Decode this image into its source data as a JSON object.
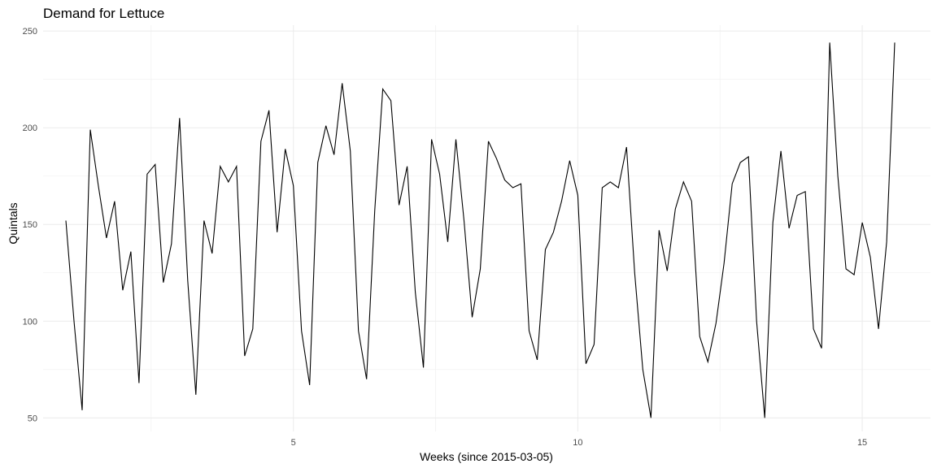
{
  "chart_data": {
    "type": "line",
    "title": "Demand for Lettuce",
    "xlabel": "Weeks (since 2015-03-05)",
    "ylabel": "Quintals",
    "xlim": [
      0.6,
      16.2
    ],
    "ylim": [
      43,
      253
    ],
    "x_major_ticks": [
      5,
      10,
      15
    ],
    "x_minor_ticks": [
      2.5,
      7.5,
      12.5
    ],
    "y_major_ticks": [
      50,
      100,
      150,
      200,
      250
    ],
    "y_minor_ticks": [
      75,
      125,
      175,
      225
    ],
    "grid": true,
    "legend": "none",
    "series": [
      {
        "x": [
          1.0,
          1.143,
          1.286,
          1.429,
          1.571,
          1.714,
          1.857,
          2.0,
          2.143,
          2.286,
          2.429,
          2.571,
          2.714,
          2.857,
          3.0,
          3.143,
          3.286,
          3.429,
          3.571,
          3.714,
          3.857,
          4.0,
          4.143,
          4.286,
          4.429,
          4.571,
          4.714,
          4.857,
          5.0,
          5.143,
          5.286,
          5.429,
          5.571,
          5.714,
          5.857,
          6.0,
          6.143,
          6.286,
          6.429,
          6.571,
          6.714,
          6.857,
          7.0,
          7.143,
          7.286,
          7.429,
          7.571,
          7.714,
          7.857,
          8.0,
          8.143,
          8.286,
          8.429,
          8.571,
          8.714,
          8.857,
          9.0,
          9.143,
          9.286,
          9.429,
          9.571,
          9.714,
          9.857,
          10.0,
          10.143,
          10.286,
          10.429,
          10.571,
          10.714,
          10.857,
          11.0,
          11.143,
          11.286,
          11.429,
          11.571,
          11.714,
          11.857,
          12.0,
          12.143,
          12.286,
          12.429,
          12.571,
          12.714,
          12.857,
          13.0,
          13.143,
          13.286,
          13.429,
          13.571,
          13.714,
          13.857,
          14.0,
          14.143,
          14.286,
          14.429,
          14.571,
          14.714,
          14.857,
          15.0,
          15.143,
          15.286,
          15.429,
          15.571
        ],
        "values": [
          152,
          100,
          54,
          199,
          170,
          143,
          162,
          116,
          136,
          68,
          176,
          181,
          120,
          140,
          205,
          121,
          62,
          152,
          135,
          180,
          172,
          180,
          82,
          96,
          193,
          209,
          146,
          189,
          170,
          95,
          67,
          182,
          201,
          186,
          223,
          188,
          95,
          70,
          157,
          220,
          214,
          160,
          180,
          115,
          76,
          194,
          176,
          141,
          194,
          152,
          102,
          127,
          193,
          184,
          173,
          169,
          171,
          95,
          80,
          137,
          146,
          162,
          183,
          165,
          78,
          88,
          169,
          172,
          169,
          190,
          125,
          75,
          50,
          147,
          126,
          158,
          172,
          162,
          92,
          79,
          99,
          130,
          171,
          182,
          185,
          100,
          50,
          151,
          188,
          148,
          165,
          167,
          96,
          86,
          244,
          175,
          127,
          124,
          151,
          133,
          96,
          141,
          244
        ]
      }
    ]
  }
}
